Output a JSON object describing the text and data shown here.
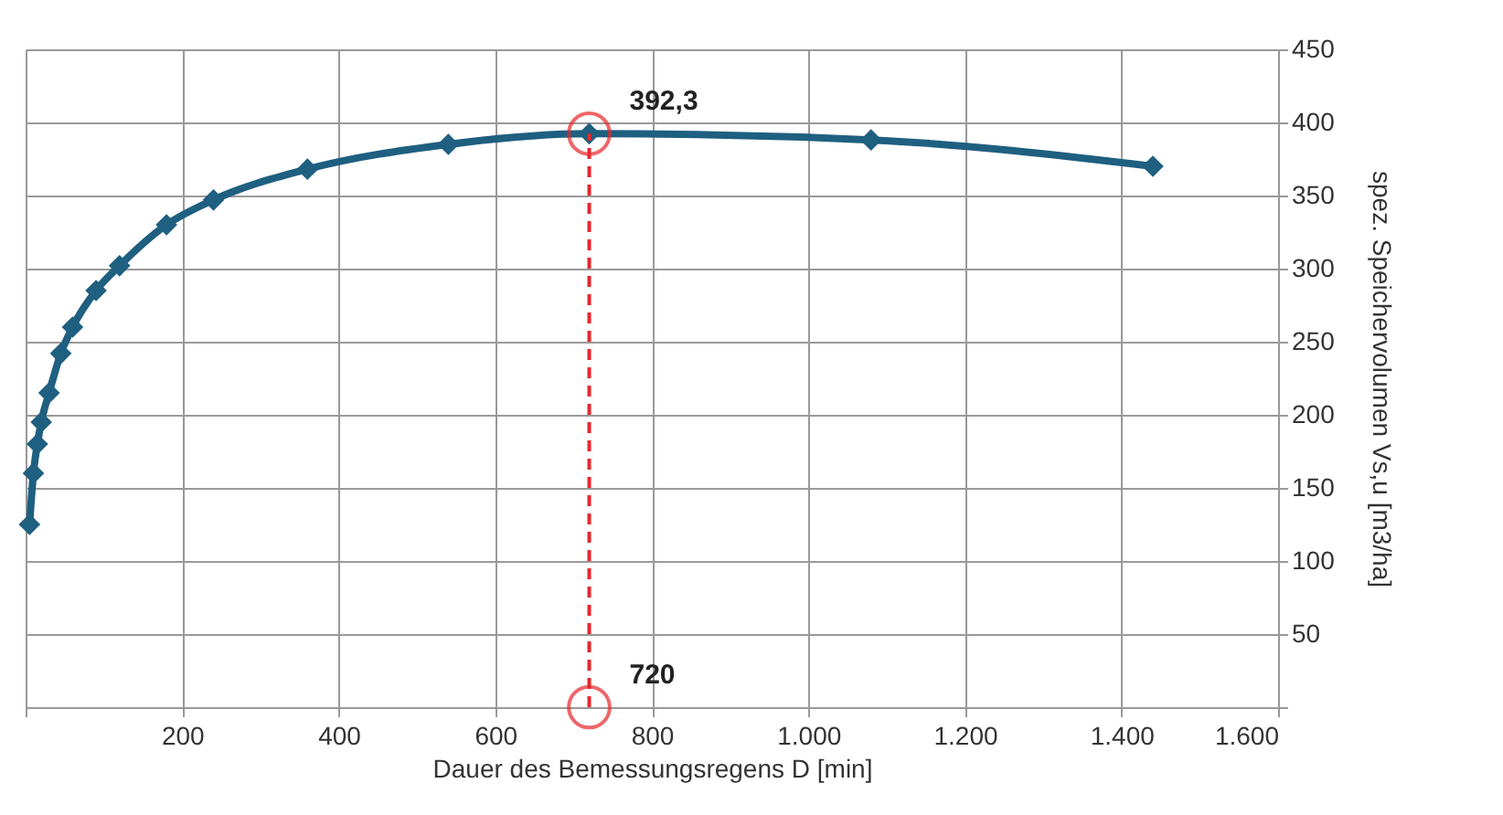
{
  "chart_data": {
    "type": "line",
    "xlabel": "Dauer des Bemessungsregens D [min]",
    "ylabel": "spez. Speichervolumen Vs,u [m3/ha]",
    "x": [
      5,
      10,
      15,
      20,
      30,
      45,
      60,
      90,
      120,
      180,
      240,
      360,
      540,
      720,
      1080,
      1440
    ],
    "series": [
      {
        "color": "#1f5f80",
        "values": [
          125,
          160,
          180,
          195,
          215,
          242,
          260,
          285,
          302,
          330,
          347,
          368,
          385,
          392.3,
          388,
          370
        ]
      }
    ],
    "xlim": [
      0,
      1600
    ],
    "xticks": [
      {
        "value": 0,
        "label": null
      },
      200,
      400,
      600,
      800,
      {
        "value": 1000,
        "label": "1.000"
      },
      {
        "value": 1200,
        "label": "1.200"
      },
      {
        "value": 1400,
        "label": "1.400"
      },
      {
        "value": 1600,
        "label": "1.600"
      }
    ],
    "ylim": [
      0,
      450
    ],
    "yticks": [
      {
        "value": 0,
        "label": null
      },
      50,
      100,
      150,
      200,
      250,
      300,
      350,
      400,
      450
    ],
    "grid": true,
    "marker": "diamond",
    "line_style": "solid",
    "ref_lines": [
      {
        "axis": "x",
        "value": 720,
        "color": "#e8262b",
        "line_style": "dashed"
      }
    ],
    "annotations": [
      {
        "text": "392,3",
        "x": 720,
        "y": 392.3
      },
      {
        "text": "720",
        "x": 720,
        "y": 0
      }
    ]
  }
}
